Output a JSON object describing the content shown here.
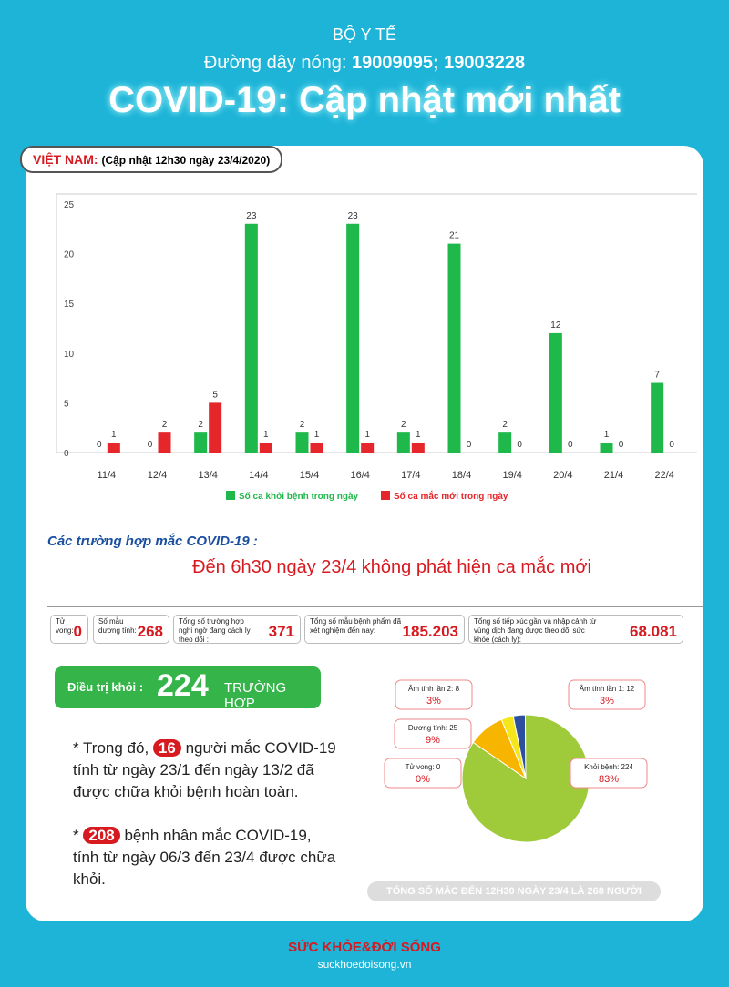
{
  "header": {
    "org": "BỘ Y TẾ",
    "hotline_label": "Đường dây nóng:",
    "hotline_numbers": "19009095; 19003228",
    "title": "COVID-19: Cập nhật mới nhất"
  },
  "badge": {
    "country": "VIỆT NAM:",
    "update": "(Cập nhật 12h30 ngày 23/4/2020)"
  },
  "chart_data": [
    {
      "type": "bar",
      "categories": [
        "11/4",
        "12/4",
        "13/4",
        "14/4",
        "15/4",
        "16/4",
        "17/4",
        "18/4",
        "19/4",
        "20/4",
        "21/4",
        "22/4"
      ],
      "series": [
        {
          "name": "Số ca khỏi bệnh trong ngày",
          "color": "#1fb84a",
          "values": [
            0,
            0,
            2,
            23,
            2,
            23,
            2,
            21,
            2,
            12,
            1,
            7
          ]
        },
        {
          "name": "Số ca mắc mới trong ngày",
          "color": "#e5262a",
          "values": [
            1,
            2,
            5,
            1,
            1,
            1,
            1,
            0,
            0,
            0,
            0,
            0
          ]
        }
      ],
      "ylim": [
        0,
        26
      ],
      "yticks": [
        0,
        5,
        10,
        15,
        20,
        25
      ],
      "grid": false,
      "legend": "bottom"
    },
    {
      "type": "pie",
      "categories": [
        "Âm tính lần 1: 12",
        "Khỏi bệnh: 224",
        "Tử vong: 0",
        "Dương tính: 25",
        "Âm tính lần 2: 8"
      ],
      "values": [
        3,
        83,
        0,
        9,
        3
      ],
      "value_labels": [
        "3%",
        "83%",
        "0%",
        "9%",
        "3%"
      ],
      "colors": [
        "#2e4fa0",
        "#9fcb3b",
        "#e5262a",
        "#f7b500",
        "#f4e61b"
      ]
    }
  ],
  "cases": {
    "heading": "Các trường hợp mắc COVID-19 :",
    "notice": "Đến 6h30 ngày 23/4 không phát hiện ca mắc mới"
  },
  "stats": [
    {
      "label": "Tử vong:",
      "value": "0"
    },
    {
      "label": "Số mẫu dương tính:",
      "value": "268"
    },
    {
      "label": "Tổng số trường hợp nghi ngờ đang cách ly theo dõi :",
      "value": "371"
    },
    {
      "label": "Tổng số mẫu bệnh phẩm đã xét nghiệm đến nay:",
      "value": "185.203"
    },
    {
      "label": "Tổng số tiếp xúc gần và nhập cảnh từ vùng dịch đang được theo dõi sức khỏe (cách ly):",
      "value": "68.081"
    }
  ],
  "recovered": {
    "label": "Điều trị khỏi :",
    "number": "224",
    "unit": "TRƯỜNG HỢP"
  },
  "notes": [
    {
      "prefix": "* Trong đó,",
      "highlight": "16",
      "text": "người mắc COVID-19 tính từ ngày 23/1 đến ngày 13/2 đã được chữa khỏi bệnh hoàn toàn."
    },
    {
      "prefix": "*",
      "highlight": "208",
      "text": "bệnh nhân  mắc COVID-19, tính từ ngày 06/3 đến 23/4 được chữa khỏi."
    }
  ],
  "total": "TỔNG SỐ MẮC ĐẾN 12H30 NGÀY 23/4 LÀ 268 NGƯỜI",
  "footer": {
    "brand": "SỨC KHỎE&ĐỜI SỐNG",
    "site": "suckhoedoisong.vn"
  }
}
